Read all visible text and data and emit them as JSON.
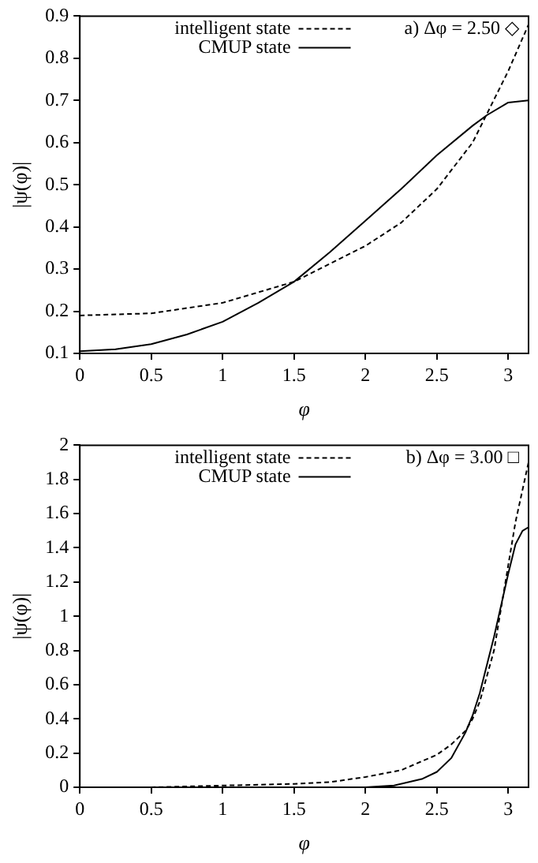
{
  "chart_data": [
    {
      "type": "line",
      "xlabel": "φ",
      "ylabel": "|ψ(φ)|",
      "xlim": [
        0,
        3.1416
      ],
      "ylim": [
        0.1,
        0.9
      ],
      "xticks": [
        0,
        0.5,
        1,
        1.5,
        2,
        2.5,
        3
      ],
      "yticks": [
        0.1,
        0.2,
        0.3,
        0.4,
        0.5,
        0.6,
        0.7,
        0.8,
        0.9
      ],
      "grid": false,
      "legend": "top",
      "marker": "none",
      "annotations": [
        "a) Δφ = 2.50 ◇"
      ],
      "series": [
        {
          "name": "intelligent state",
          "color": "#000000",
          "line_style": "dashed",
          "x": [
            0,
            0.5,
            1,
            1.5,
            2,
            2.25,
            2.5,
            2.75,
            3,
            3.1416
          ],
          "values": [
            0.19,
            0.195,
            0.22,
            0.27,
            0.355,
            0.41,
            0.49,
            0.6,
            0.77,
            0.88
          ]
        },
        {
          "name": "CMUP state",
          "color": "#000000",
          "line_style": "solid",
          "x": [
            0,
            0.25,
            0.5,
            0.75,
            1,
            1.25,
            1.5,
            1.75,
            2,
            2.25,
            2.5,
            2.75,
            2.85,
            3,
            3.1416
          ],
          "values": [
            0.105,
            0.11,
            0.122,
            0.145,
            0.175,
            0.22,
            0.27,
            0.34,
            0.415,
            0.49,
            0.57,
            0.64,
            0.665,
            0.695,
            0.7
          ]
        }
      ]
    },
    {
      "type": "line",
      "xlabel": "φ",
      "ylabel": "|ψ(φ)|",
      "xlim": [
        0,
        3.1416
      ],
      "ylim": [
        0,
        2
      ],
      "xticks": [
        0,
        0.5,
        1,
        1.5,
        2,
        2.5,
        3
      ],
      "yticks": [
        0,
        0.2,
        0.4,
        0.6,
        0.8,
        1,
        1.2,
        1.4,
        1.6,
        1.8,
        2
      ],
      "grid": false,
      "legend": "top",
      "marker": "none",
      "annotations": [
        "b) Δφ = 3.00 □"
      ],
      "series": [
        {
          "name": "intelligent state",
          "color": "#000000",
          "line_style": "dashed",
          "x": [
            0,
            0.5,
            1,
            1.5,
            1.75,
            2,
            2.25,
            2.5,
            2.6,
            2.7,
            2.75,
            2.8,
            2.9,
            3,
            3.05,
            3.1416
          ],
          "values": [
            0,
            0,
            0.01,
            0.02,
            0.03,
            0.06,
            0.1,
            0.19,
            0.25,
            0.33,
            0.4,
            0.5,
            0.8,
            1.3,
            1.55,
            1.9
          ]
        },
        {
          "name": "CMUP state",
          "color": "#000000",
          "line_style": "solid",
          "x": [
            0,
            1.5,
            2,
            2.2,
            2.3,
            2.4,
            2.5,
            2.6,
            2.7,
            2.75,
            2.8,
            2.9,
            3,
            3.05,
            3.1,
            3.1416
          ],
          "values": [
            0,
            0,
            0,
            0.01,
            0.03,
            0.05,
            0.09,
            0.17,
            0.32,
            0.42,
            0.55,
            0.88,
            1.25,
            1.42,
            1.5,
            1.52
          ]
        }
      ]
    }
  ]
}
